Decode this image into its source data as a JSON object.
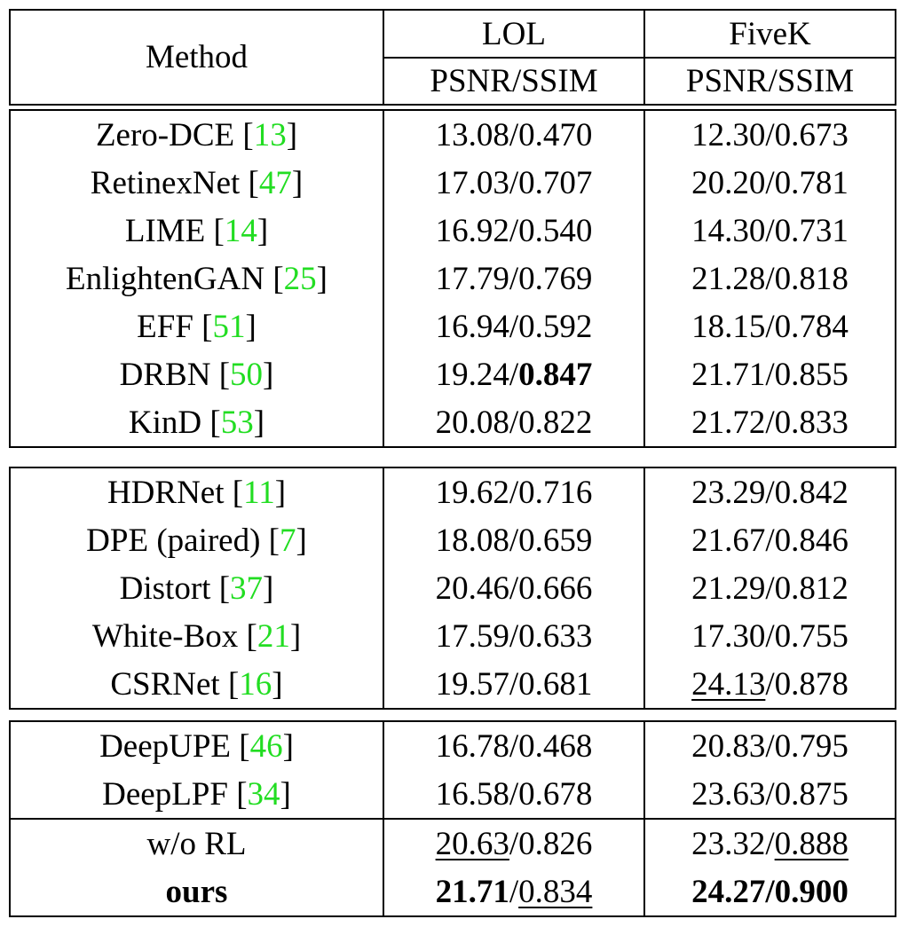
{
  "header": {
    "method": "Method",
    "datasets": [
      "LOL",
      "FiveK"
    ],
    "metric": "PSNR/SSIM"
  },
  "groups": [
    {
      "rows": [
        {
          "method": "Zero-DCE",
          "cite": "13",
          "lol_psnr": "13.08",
          "lol_ssim": "0.470",
          "fk_psnr": "12.30",
          "fk_ssim": "0.673"
        },
        {
          "method": "RetinexNet",
          "cite": "47",
          "lol_psnr": "17.03",
          "lol_ssim": "0.707",
          "fk_psnr": "20.20",
          "fk_ssim": "0.781"
        },
        {
          "method": "LIME",
          "cite": "14",
          "lol_psnr": "16.92",
          "lol_ssim": "0.540",
          "fk_psnr": "14.30",
          "fk_ssim": "0.731"
        },
        {
          "method": "EnlightenGAN",
          "cite": "25",
          "lol_psnr": "17.79",
          "lol_ssim": "0.769",
          "fk_psnr": "21.28",
          "fk_ssim": "0.818"
        },
        {
          "method": "EFF",
          "cite": "51",
          "lol_psnr": "16.94",
          "lol_ssim": "0.592",
          "fk_psnr": "18.15",
          "fk_ssim": "0.784"
        },
        {
          "method": "DRBN",
          "cite": "50",
          "lol_psnr": "19.24",
          "lol_ssim": "0.847",
          "fk_psnr": "21.71",
          "fk_ssim": "0.855"
        },
        {
          "method": "KinD",
          "cite": "53",
          "lol_psnr": "20.08",
          "lol_ssim": "0.822",
          "fk_psnr": "21.72",
          "fk_ssim": "0.833"
        }
      ]
    },
    {
      "rows": [
        {
          "method": "HDRNet",
          "cite": "11",
          "lol_psnr": "19.62",
          "lol_ssim": "0.716",
          "fk_psnr": "23.29",
          "fk_ssim": "0.842"
        },
        {
          "method": "DPE (paired)",
          "cite": "7",
          "lol_psnr": "18.08",
          "lol_ssim": "0.659",
          "fk_psnr": "21.67",
          "fk_ssim": "0.846"
        },
        {
          "method": "Distort",
          "cite": "37",
          "lol_psnr": "20.46",
          "lol_ssim": "0.666",
          "fk_psnr": "21.29",
          "fk_ssim": "0.812"
        },
        {
          "method": "White-Box",
          "cite": "21",
          "lol_psnr": "17.59",
          "lol_ssim": "0.633",
          "fk_psnr": "17.30",
          "fk_ssim": "0.755"
        },
        {
          "method": "CSRNet",
          "cite": "16",
          "lol_psnr": "19.57",
          "lol_ssim": "0.681",
          "fk_psnr": "24.13",
          "fk_ssim": "0.878"
        }
      ]
    },
    {
      "rows": [
        {
          "method": "DeepUPE",
          "cite": "46",
          "lol_psnr": "16.78",
          "lol_ssim": "0.468",
          "fk_psnr": "20.83",
          "fk_ssim": "0.795"
        },
        {
          "method": "DeepLPF",
          "cite": "34",
          "lol_psnr": "16.58",
          "lol_ssim": "0.678",
          "fk_psnr": "23.63",
          "fk_ssim": "0.875"
        },
        {
          "method": "w/o RL",
          "lol_psnr": "20.63",
          "lol_ssim": "0.826",
          "fk_psnr": "23.32",
          "fk_ssim": "0.888"
        },
        {
          "method": "ours",
          "lol_psnr": "21.71",
          "lol_ssim": "0.834",
          "fk_psnr": "24.27",
          "fk_ssim": "0.900"
        }
      ]
    }
  ],
  "sep": "/",
  "colors": {
    "citation": "#22dd22",
    "text": "#000000",
    "rule": "#000000"
  }
}
